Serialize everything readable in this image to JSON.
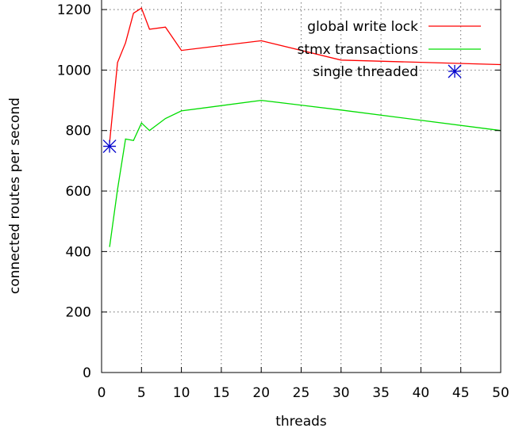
{
  "chart_data": {
    "type": "line",
    "title": "",
    "xlabel": "threads",
    "ylabel": "connected routes per second",
    "xlim": [
      0,
      50
    ],
    "ylim": [
      0,
      1250
    ],
    "grid": true,
    "legend_position": "top-right",
    "x_ticks": [
      0,
      5,
      10,
      15,
      20,
      25,
      30,
      35,
      40,
      45,
      50
    ],
    "y_ticks": [
      0,
      200,
      400,
      600,
      800,
      1000,
      1200
    ],
    "series": [
      {
        "name": "global write lock",
        "color": "#ff0000",
        "style": "line",
        "x": [
          1,
          2,
          3,
          4,
          5,
          6,
          8,
          10,
          20,
          30,
          50
        ],
        "y": [
          760,
          1025,
          1090,
          1188,
          1205,
          1135,
          1142,
          1065,
          1097,
          1033,
          1018
        ]
      },
      {
        "name": "stmx transactions",
        "color": "#00dd00",
        "style": "line",
        "x": [
          1,
          2,
          3,
          4,
          5,
          6,
          8,
          10,
          20,
          30,
          50
        ],
        "y": [
          415,
          605,
          772,
          767,
          825,
          800,
          840,
          865,
          900,
          868,
          800
        ]
      },
      {
        "name": "single threaded",
        "color": "#0000cc",
        "style": "point",
        "x": [
          1
        ],
        "y": [
          748
        ]
      }
    ]
  }
}
